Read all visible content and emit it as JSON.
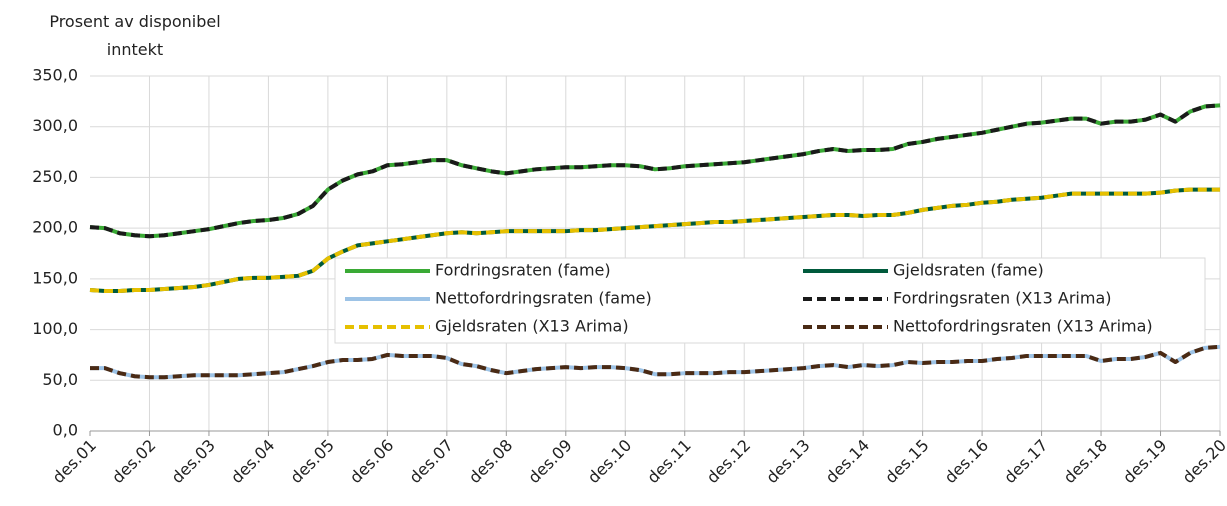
{
  "chart_data": {
    "type": "line",
    "ylabel": "Prosent av disponibel inntekt",
    "categories": [
      "des.01",
      null,
      null,
      null,
      "des.02",
      null,
      null,
      null,
      "des.03",
      null,
      null,
      null,
      "des.04",
      null,
      null,
      null,
      "des.05",
      null,
      null,
      null,
      "des.06",
      null,
      null,
      null,
      "des.07",
      null,
      null,
      null,
      "des.08",
      null,
      null,
      null,
      "des.09",
      null,
      null,
      null,
      "des.10",
      null,
      null,
      null,
      "des.11",
      null,
      null,
      null,
      "des.12",
      null,
      null,
      null,
      "des.13",
      null,
      null,
      null,
      "des.14",
      null,
      null,
      null,
      "des.15",
      null,
      null,
      null,
      "des.16",
      null,
      null,
      null,
      "des.17",
      null,
      null,
      null,
      "des.18",
      null,
      null,
      null,
      "des.19",
      null,
      null,
      null,
      "des.20"
    ],
    "ylim": [
      0,
      350
    ],
    "yticks": [
      {
        "value": 0,
        "label": "0,0"
      },
      {
        "value": 50,
        "label": "50,0"
      },
      {
        "value": 100,
        "label": "100,0"
      },
      {
        "value": 150,
        "label": "150,0"
      },
      {
        "value": 200,
        "label": "200,0"
      },
      {
        "value": 250,
        "label": "250,0"
      },
      {
        "value": 300,
        "label": "300,0"
      },
      {
        "value": 350,
        "label": "350,0"
      }
    ],
    "grid": true,
    "legend": "center-right",
    "series": [
      {
        "name": "Fordringsraten (fame)",
        "color": "#3aaa35",
        "dashed": false,
        "values": [
          201,
          200,
          195,
          193,
          192,
          193,
          195,
          197,
          199,
          202,
          205,
          207,
          208,
          210,
          214,
          222,
          238,
          247,
          253,
          256,
          262,
          263,
          265,
          267,
          267,
          262,
          259,
          256,
          254,
          256,
          258,
          259,
          260,
          260,
          261,
          262,
          262,
          261,
          258,
          259,
          261,
          262,
          263,
          264,
          265,
          267,
          269,
          271,
          273,
          276,
          278,
          276,
          277,
          277,
          278,
          283,
          285,
          288,
          290,
          292,
          294,
          297,
          300,
          303,
          304,
          306,
          308,
          308,
          303,
          305,
          305,
          307,
          312,
          305,
          315,
          320,
          321
        ]
      },
      {
        "name": "Gjeldsraten (fame)",
        "color": "#005a3c",
        "dashed": false,
        "values": [
          139,
          138,
          138,
          139,
          139,
          140,
          141,
          142,
          144,
          147,
          150,
          151,
          151,
          152,
          153,
          158,
          170,
          177,
          183,
          185,
          187,
          189,
          191,
          193,
          195,
          196,
          195,
          196,
          197,
          197,
          197,
          197,
          197,
          198,
          198,
          199,
          200,
          201,
          202,
          203,
          204,
          205,
          206,
          206,
          207,
          208,
          209,
          210,
          211,
          212,
          213,
          213,
          212,
          213,
          213,
          215,
          218,
          220,
          222,
          223,
          225,
          226,
          228,
          229,
          230,
          232,
          234,
          234,
          234,
          234,
          234,
          234,
          235,
          237,
          238,
          238,
          238
        ]
      },
      {
        "name": "Nettofordringsraten (fame)",
        "color": "#9dc3e6",
        "dashed": false,
        "values": [
          62,
          62,
          57,
          54,
          53,
          53,
          54,
          55,
          55,
          55,
          55,
          56,
          57,
          58,
          61,
          64,
          68,
          70,
          70,
          71,
          75,
          74,
          74,
          74,
          72,
          66,
          64,
          60,
          57,
          59,
          61,
          62,
          63,
          62,
          63,
          63,
          62,
          60,
          56,
          56,
          57,
          57,
          57,
          58,
          58,
          59,
          60,
          61,
          62,
          64,
          65,
          63,
          65,
          64,
          65,
          68,
          67,
          68,
          68,
          69,
          69,
          71,
          72,
          74,
          74,
          74,
          74,
          74,
          69,
          71,
          71,
          73,
          77,
          68,
          77,
          82,
          83
        ]
      },
      {
        "name": "Fordringsraten (X13 Arima)",
        "color": "#1a1a1a",
        "dashed": true,
        "values": [
          201,
          200,
          195,
          193,
          192,
          193,
          195,
          197,
          199,
          202,
          205,
          207,
          208,
          210,
          214,
          222,
          238,
          247,
          253,
          256,
          262,
          263,
          265,
          267,
          267,
          262,
          259,
          256,
          254,
          256,
          258,
          259,
          260,
          260,
          261,
          262,
          262,
          261,
          258,
          259,
          261,
          262,
          263,
          264,
          265,
          267,
          269,
          271,
          273,
          276,
          278,
          276,
          277,
          277,
          278,
          283,
          285,
          288,
          290,
          292,
          294,
          297,
          300,
          303,
          304,
          306,
          308,
          308,
          303,
          305,
          305,
          307,
          312,
          305,
          315,
          320,
          321
        ]
      },
      {
        "name": "Gjeldsraten (X13 Arima)",
        "color": "#e6c000",
        "dashed": true,
        "values": [
          139,
          138,
          138,
          139,
          139,
          140,
          141,
          142,
          144,
          147,
          150,
          151,
          151,
          152,
          153,
          158,
          170,
          177,
          183,
          185,
          187,
          189,
          191,
          193,
          195,
          196,
          195,
          196,
          197,
          197,
          197,
          197,
          197,
          198,
          198,
          199,
          200,
          201,
          202,
          203,
          204,
          205,
          206,
          206,
          207,
          208,
          209,
          210,
          211,
          212,
          213,
          213,
          212,
          213,
          213,
          215,
          218,
          220,
          222,
          223,
          225,
          226,
          228,
          229,
          230,
          232,
          234,
          234,
          234,
          234,
          234,
          234,
          235,
          237,
          238,
          238,
          238
        ]
      },
      {
        "name": "Nettofordringsraten (X13 Arima)",
        "color": "#4a2a14",
        "dashed": true,
        "values": [
          62,
          62,
          57,
          54,
          53,
          53,
          54,
          55,
          55,
          55,
          55,
          56,
          57,
          58,
          61,
          64,
          68,
          70,
          70,
          71,
          75,
          74,
          74,
          74,
          72,
          66,
          64,
          60,
          57,
          59,
          61,
          62,
          63,
          62,
          63,
          63,
          62,
          60,
          56,
          56,
          57,
          57,
          57,
          58,
          58,
          59,
          60,
          61,
          62,
          64,
          65,
          63,
          65,
          64,
          65,
          68,
          67,
          68,
          68,
          69,
          69,
          71,
          72,
          74,
          74,
          74,
          74,
          74,
          69,
          71,
          71,
          73,
          77,
          68,
          77,
          82,
          83
        ]
      }
    ]
  }
}
